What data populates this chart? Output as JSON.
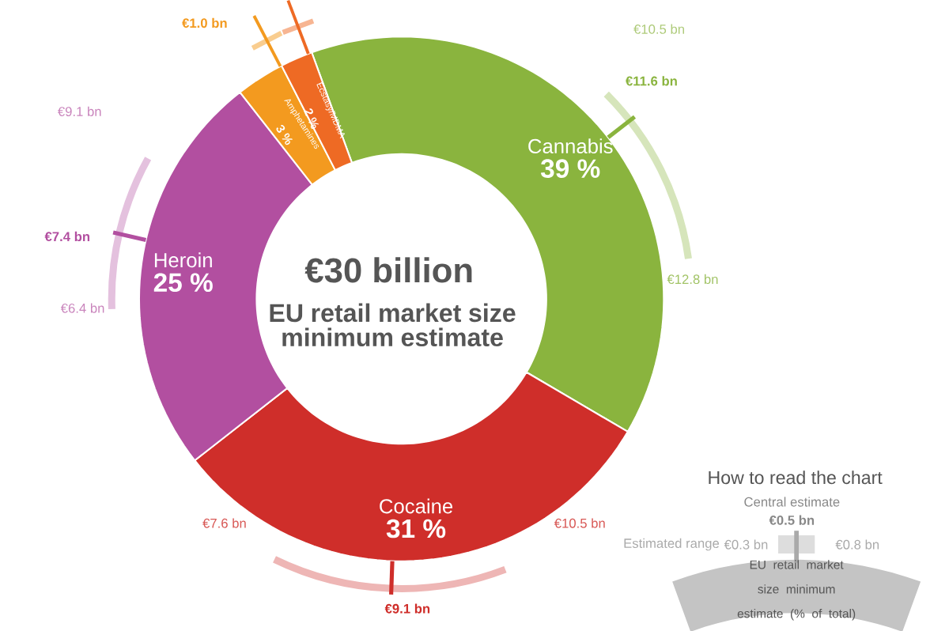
{
  "chart_data": {
    "type": "donut",
    "title": "€30 billion",
    "subtitle": "EU retail market size minimum estimate",
    "categories": [
      "Cannabis",
      "Cocaine",
      "Heroin",
      "Amphetamines",
      "Ecstasy/MDMA"
    ],
    "values": [
      39,
      31,
      25,
      3,
      2
    ],
    "colors": [
      "#8ab43e",
      "#cf2e2a",
      "#b24fa0",
      "#f39a1f",
      "#ee6a24"
    ],
    "value_labels": [
      "39 %",
      "31 %",
      "25 %",
      "3 %",
      "2 %"
    ],
    "annotations": [
      "€10.5 bn",
      "€11.6 bn",
      "€12.8 bn",
      "€7.6 bn",
      "€9.1 bn",
      "€10.5 bn",
      "€9.1 bn",
      "€7.4 bn",
      "€6.4 bn",
      "€1.0 bn",
      "How to read the chart",
      "Central estimate",
      "€0.5 bn",
      "Estimated range",
      "€0.3 bn",
      "€0.8 bn",
      "EU retail market size minimum estimate (% of total)"
    ]
  }
}
